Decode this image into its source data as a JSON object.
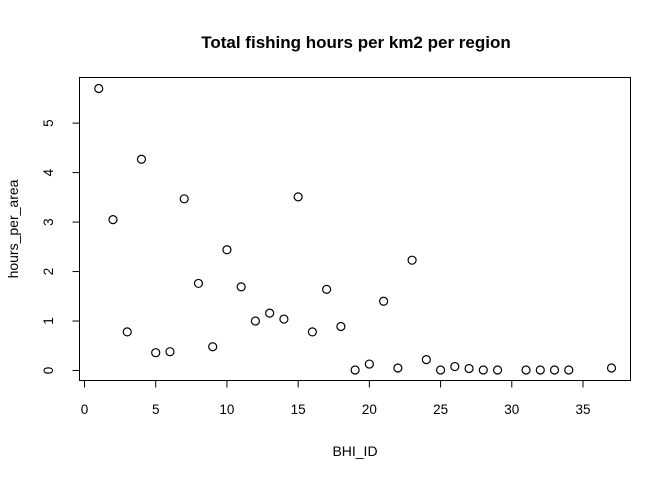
{
  "chart_data": {
    "type": "scatter",
    "title": "Total fishing hours per km2 per region",
    "xlabel": "BHI_ID",
    "ylabel": "hours_per_area",
    "xlim": [
      0,
      37
    ],
    "ylim": [
      0,
      5.7
    ],
    "xticks": [
      0,
      5,
      10,
      15,
      20,
      25,
      30,
      35
    ],
    "yticks": [
      0,
      1,
      2,
      3,
      4,
      5
    ],
    "grid": false,
    "legend": "none",
    "marker": "open-circle",
    "points": [
      {
        "x": 1,
        "y": 5.7
      },
      {
        "x": 2,
        "y": 3.05
      },
      {
        "x": 3,
        "y": 0.78
      },
      {
        "x": 4,
        "y": 4.27
      },
      {
        "x": 5,
        "y": 0.36
      },
      {
        "x": 6,
        "y": 0.38
      },
      {
        "x": 7,
        "y": 3.47
      },
      {
        "x": 8,
        "y": 1.76
      },
      {
        "x": 9,
        "y": 0.48
      },
      {
        "x": 10,
        "y": 2.44
      },
      {
        "x": 11,
        "y": 1.69
      },
      {
        "x": 12,
        "y": 1.0
      },
      {
        "x": 13,
        "y": 1.16
      },
      {
        "x": 14,
        "y": 1.04
      },
      {
        "x": 15,
        "y": 3.51
      },
      {
        "x": 16,
        "y": 0.78
      },
      {
        "x": 17,
        "y": 1.64
      },
      {
        "x": 18,
        "y": 0.89
      },
      {
        "x": 19,
        "y": 0.01
      },
      {
        "x": 20,
        "y": 0.13
      },
      {
        "x": 21,
        "y": 1.4
      },
      {
        "x": 22,
        "y": 0.05
      },
      {
        "x": 23,
        "y": 2.23
      },
      {
        "x": 24,
        "y": 0.22
      },
      {
        "x": 25,
        "y": 0.01
      },
      {
        "x": 26,
        "y": 0.08
      },
      {
        "x": 27,
        "y": 0.04
      },
      {
        "x": 28,
        "y": 0.01
      },
      {
        "x": 29,
        "y": 0.01
      },
      {
        "x": 31,
        "y": 0.01
      },
      {
        "x": 32,
        "y": 0.01
      },
      {
        "x": 33,
        "y": 0.01
      },
      {
        "x": 34,
        "y": 0.01
      },
      {
        "x": 37,
        "y": 0.05
      }
    ]
  }
}
